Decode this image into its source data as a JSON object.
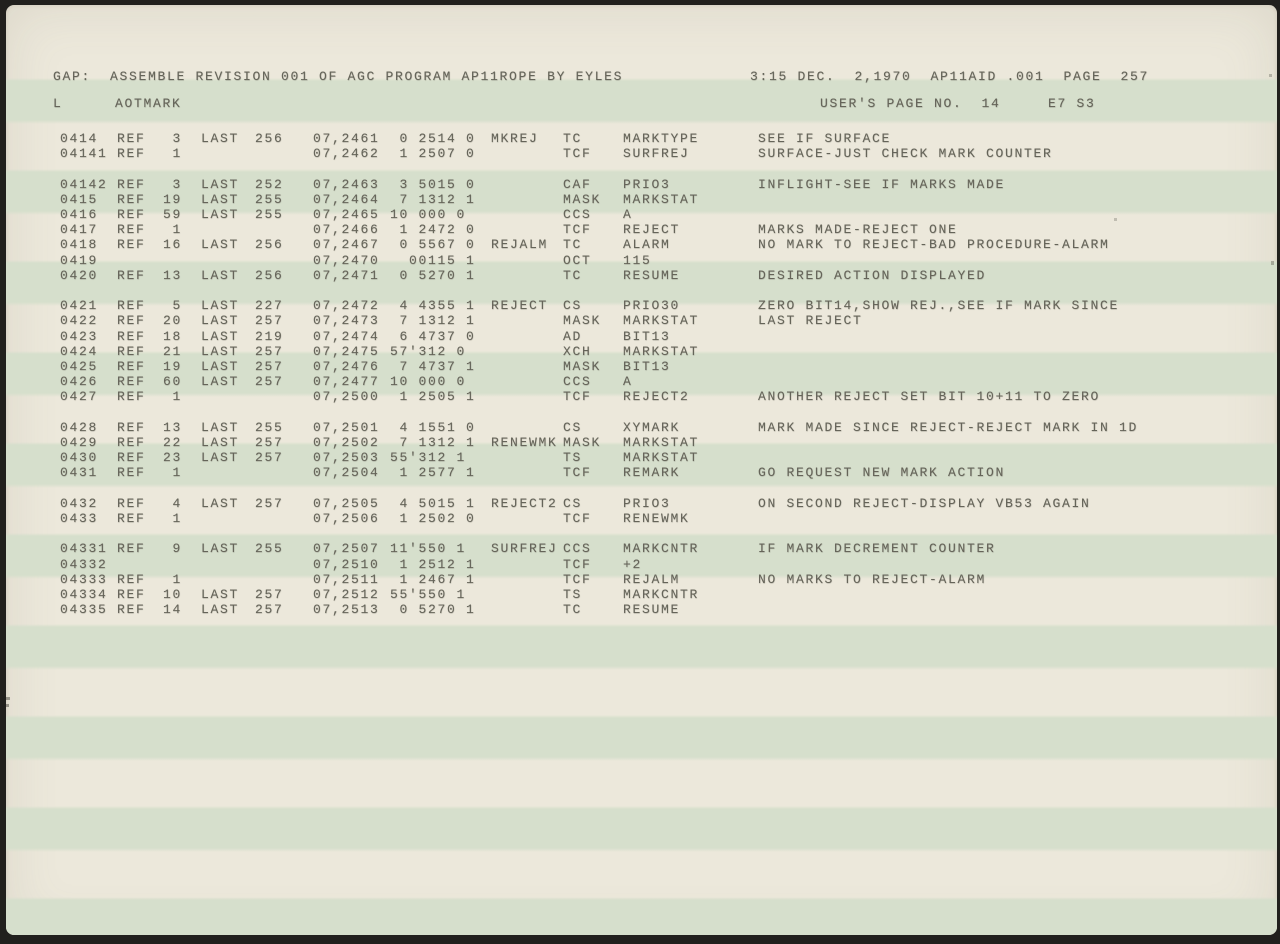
{
  "header": {
    "title_line": "GAP:  ASSEMBLE REVISION 001 OF AGC PROGRAM AP11ROPE BY EYLES",
    "time_line": "3:15 DEC.  2,1970  AP11AID .001  PAGE  257",
    "log_section": "L",
    "routine_name": "AOTMARK",
    "users_page_line": "USER'S PAGE NO.  14",
    "page_suffix": "E7 S3"
  },
  "colors": {
    "paper": "#ece8db",
    "stripe_green": "#d6dfcc",
    "ink": "#656459",
    "edge": "#21201d"
  },
  "listing": {
    "columns": [
      "loc",
      "ref",
      "ref_n",
      "last",
      "last_n",
      "addr",
      "word",
      "label",
      "op",
      "operand",
      "comment"
    ],
    "blocks": [
      {
        "rows": [
          {
            "loc": "0414",
            "ref": "REF",
            "ref_n": "3",
            "last": "LAST",
            "last_n": "256",
            "addr": "07,2461",
            "word": " 0 2514 0",
            "label": "MKREJ",
            "op": "TC",
            "operand": "MARKTYPE",
            "comment": "SEE IF SURFACE"
          },
          {
            "loc": "04141",
            "ref": "REF",
            "ref_n": "1",
            "last": "",
            "last_n": "",
            "addr": "07,2462",
            "word": " 1 2507 0",
            "label": "",
            "op": "TCF",
            "operand": "SURFREJ",
            "comment": "SURFACE-JUST CHECK MARK COUNTER"
          }
        ]
      },
      {
        "rows": [
          {
            "loc": "04142",
            "ref": "REF",
            "ref_n": "3",
            "last": "LAST",
            "last_n": "252",
            "addr": "07,2463",
            "word": " 3 5015 0",
            "label": "",
            "op": "CAF",
            "operand": "PRIO3",
            "comment": "INFLIGHT-SEE IF MARKS MADE"
          },
          {
            "loc": "0415",
            "ref": "REF",
            "ref_n": "19",
            "last": "LAST",
            "last_n": "255",
            "addr": "07,2464",
            "word": " 7 1312 1",
            "label": "",
            "op": "MASK",
            "operand": "MARKSTAT",
            "comment": ""
          },
          {
            "loc": "0416",
            "ref": "REF",
            "ref_n": "59",
            "last": "LAST",
            "last_n": "255",
            "addr": "07,2465",
            "word": "10 000 0",
            "label": "",
            "op": "CCS",
            "operand": "A",
            "comment": ""
          },
          {
            "loc": "0417",
            "ref": "REF",
            "ref_n": "1",
            "last": "",
            "last_n": "",
            "addr": "07,2466",
            "word": " 1 2472 0",
            "label": "",
            "op": "TCF",
            "operand": "REJECT",
            "comment": "MARKS MADE-REJECT ONE"
          },
          {
            "loc": "0418",
            "ref": "REF",
            "ref_n": "16",
            "last": "LAST",
            "last_n": "256",
            "addr": "07,2467",
            "word": " 0 5567 0",
            "label": "REJALM",
            "op": "TC",
            "operand": "ALARM",
            "comment": "NO MARK TO REJECT-BAD PROCEDURE-ALARM"
          },
          {
            "loc": "0419",
            "ref": "",
            "ref_n": "",
            "last": "",
            "last_n": "",
            "addr": "07,2470",
            "word": "  00115 1",
            "label": "",
            "op": "OCT",
            "operand": "115",
            "comment": ""
          },
          {
            "loc": "0420",
            "ref": "REF",
            "ref_n": "13",
            "last": "LAST",
            "last_n": "256",
            "addr": "07,2471",
            "word": " 0 5270 1",
            "label": "",
            "op": "TC",
            "operand": "RESUME",
            "comment": "DESIRED ACTION DISPLAYED"
          }
        ]
      },
      {
        "rows": [
          {
            "loc": "0421",
            "ref": "REF",
            "ref_n": "5",
            "last": "LAST",
            "last_n": "227",
            "addr": "07,2472",
            "word": " 4 4355 1",
            "label": "REJECT",
            "op": "CS",
            "operand": "PRIO30",
            "comment": "ZERO BIT14,SHOW REJ.,SEE IF MARK SINCE"
          },
          {
            "loc": "0422",
            "ref": "REF",
            "ref_n": "20",
            "last": "LAST",
            "last_n": "257",
            "addr": "07,2473",
            "word": " 7 1312 1",
            "label": "",
            "op": "MASK",
            "operand": "MARKSTAT",
            "comment": "LAST REJECT"
          },
          {
            "loc": "0423",
            "ref": "REF",
            "ref_n": "18",
            "last": "LAST",
            "last_n": "219",
            "addr": "07,2474",
            "word": " 6 4737 0",
            "label": "",
            "op": "AD",
            "operand": "BIT13",
            "comment": ""
          },
          {
            "loc": "0424",
            "ref": "REF",
            "ref_n": "21",
            "last": "LAST",
            "last_n": "257",
            "addr": "07,2475",
            "word": "57'312 0",
            "label": "",
            "op": "XCH",
            "operand": "MARKSTAT",
            "comment": ""
          },
          {
            "loc": "0425",
            "ref": "REF",
            "ref_n": "19",
            "last": "LAST",
            "last_n": "257",
            "addr": "07,2476",
            "word": " 7 4737 1",
            "label": "",
            "op": "MASK",
            "operand": "BIT13",
            "comment": ""
          },
          {
            "loc": "0426",
            "ref": "REF",
            "ref_n": "60",
            "last": "LAST",
            "last_n": "257",
            "addr": "07,2477",
            "word": "10 000 0",
            "label": "",
            "op": "CCS",
            "operand": "A",
            "comment": ""
          },
          {
            "loc": "0427",
            "ref": "REF",
            "ref_n": "1",
            "last": "",
            "last_n": "",
            "addr": "07,2500",
            "word": " 1 2505 1",
            "label": "",
            "op": "TCF",
            "operand": "REJECT2",
            "comment": "ANOTHER REJECT SET BIT 10+11 TO ZERO"
          }
        ]
      },
      {
        "rows": [
          {
            "loc": "0428",
            "ref": "REF",
            "ref_n": "13",
            "last": "LAST",
            "last_n": "255",
            "addr": "07,2501",
            "word": " 4 1551 0",
            "label": "",
            "op": "CS",
            "operand": "XYMARK",
            "comment": "MARK MADE SINCE REJECT-REJECT MARK IN 1D"
          },
          {
            "loc": "0429",
            "ref": "REF",
            "ref_n": "22",
            "last": "LAST",
            "last_n": "257",
            "addr": "07,2502",
            "word": " 7 1312 1",
            "label": "RENEWMK",
            "op": "MASK",
            "operand": "MARKSTAT",
            "comment": ""
          },
          {
            "loc": "0430",
            "ref": "REF",
            "ref_n": "23",
            "last": "LAST",
            "last_n": "257",
            "addr": "07,2503",
            "word": "55'312 1",
            "label": "",
            "op": "TS",
            "operand": "MARKSTAT",
            "comment": ""
          },
          {
            "loc": "0431",
            "ref": "REF",
            "ref_n": "1",
            "last": "",
            "last_n": "",
            "addr": "07,2504",
            "word": " 1 2577 1",
            "label": "",
            "op": "TCF",
            "operand": "REMARK",
            "comment": "GO REQUEST NEW MARK ACTION"
          }
        ]
      },
      {
        "rows": [
          {
            "loc": "0432",
            "ref": "REF",
            "ref_n": "4",
            "last": "LAST",
            "last_n": "257",
            "addr": "07,2505",
            "word": " 4 5015 1",
            "label": "REJECT2",
            "op": "CS",
            "operand": "PRIO3",
            "comment": "ON SECOND REJECT-DISPLAY VB53 AGAIN"
          },
          {
            "loc": "0433",
            "ref": "REF",
            "ref_n": "1",
            "last": "",
            "last_n": "",
            "addr": "07,2506",
            "word": " 1 2502 0",
            "label": "",
            "op": "TCF",
            "operand": "RENEWMK",
            "comment": ""
          }
        ]
      },
      {
        "rows": [
          {
            "loc": "04331",
            "ref": "REF",
            "ref_n": "9",
            "last": "LAST",
            "last_n": "255",
            "addr": "07,2507",
            "word": "11'550 1",
            "label": "SURFREJ",
            "op": "CCS",
            "operand": "MARKCNTR",
            "comment": "IF MARK DECREMENT COUNTER"
          },
          {
            "loc": "04332",
            "ref": "",
            "ref_n": "",
            "last": "",
            "last_n": "",
            "addr": "07,2510",
            "word": " 1 2512 1",
            "label": "",
            "op": "TCF",
            "operand": "+2",
            "comment": ""
          },
          {
            "loc": "04333",
            "ref": "REF",
            "ref_n": "1",
            "last": "",
            "last_n": "",
            "addr": "07,2511",
            "word": " 1 2467 1",
            "label": "",
            "op": "TCF",
            "operand": "REJALM",
            "comment": "NO MARKS TO REJECT-ALARM"
          },
          {
            "loc": "04334",
            "ref": "REF",
            "ref_n": "10",
            "last": "LAST",
            "last_n": "257",
            "addr": "07,2512",
            "word": "55'550 1",
            "label": "",
            "op": "TS",
            "operand": "MARKCNTR",
            "comment": ""
          },
          {
            "loc": "04335",
            "ref": "REF",
            "ref_n": "14",
            "last": "LAST",
            "last_n": "257",
            "addr": "07,2513",
            "word": " 0 5270 1",
            "label": "",
            "op": "TC",
            "operand": "RESUME",
            "comment": ""
          }
        ]
      }
    ]
  }
}
